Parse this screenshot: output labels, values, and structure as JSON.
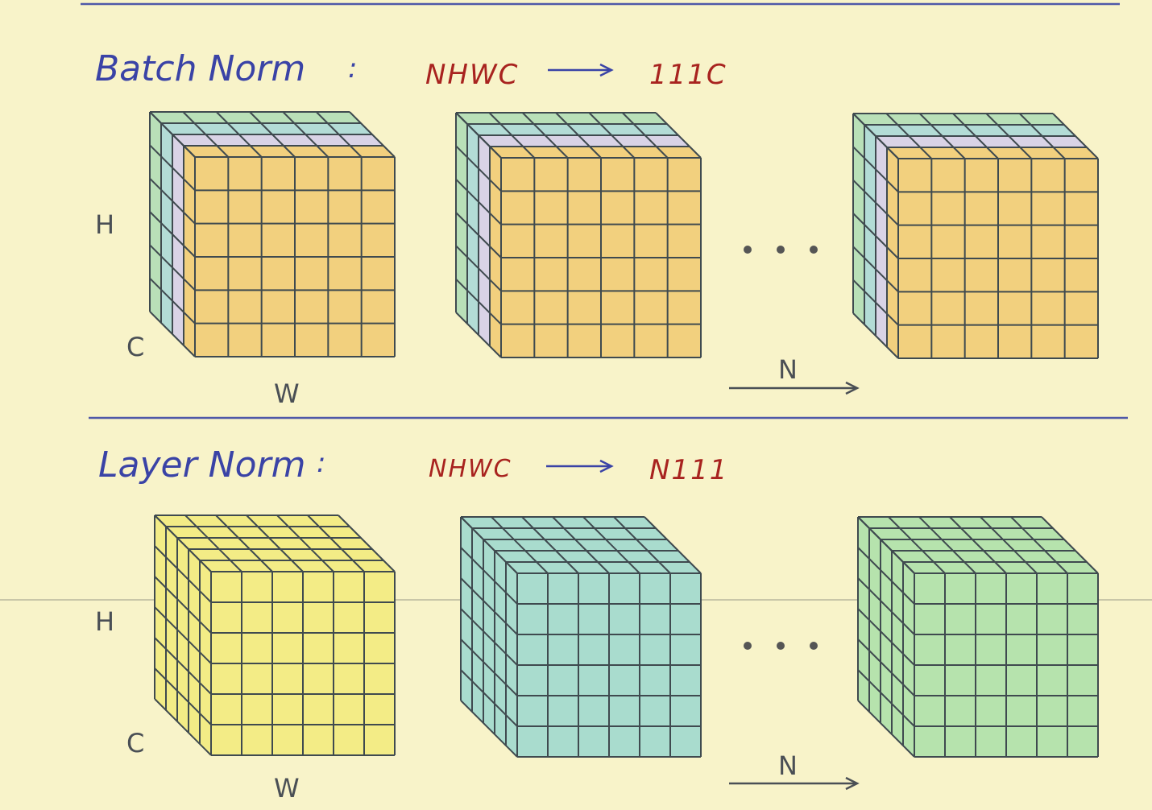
{
  "sections": [
    {
      "title": "Batch Norm",
      "separator": ":",
      "from": "NHWC",
      "to": "111C",
      "axes": {
        "h": "H",
        "c": "C",
        "w": "W",
        "n": "N"
      }
    },
    {
      "title": "Layer Norm",
      "separator": ":",
      "from": "NHWC",
      "to": "N111",
      "axes": {
        "h": "H",
        "c": "C",
        "w": "W",
        "n": "N"
      }
    }
  ]
}
